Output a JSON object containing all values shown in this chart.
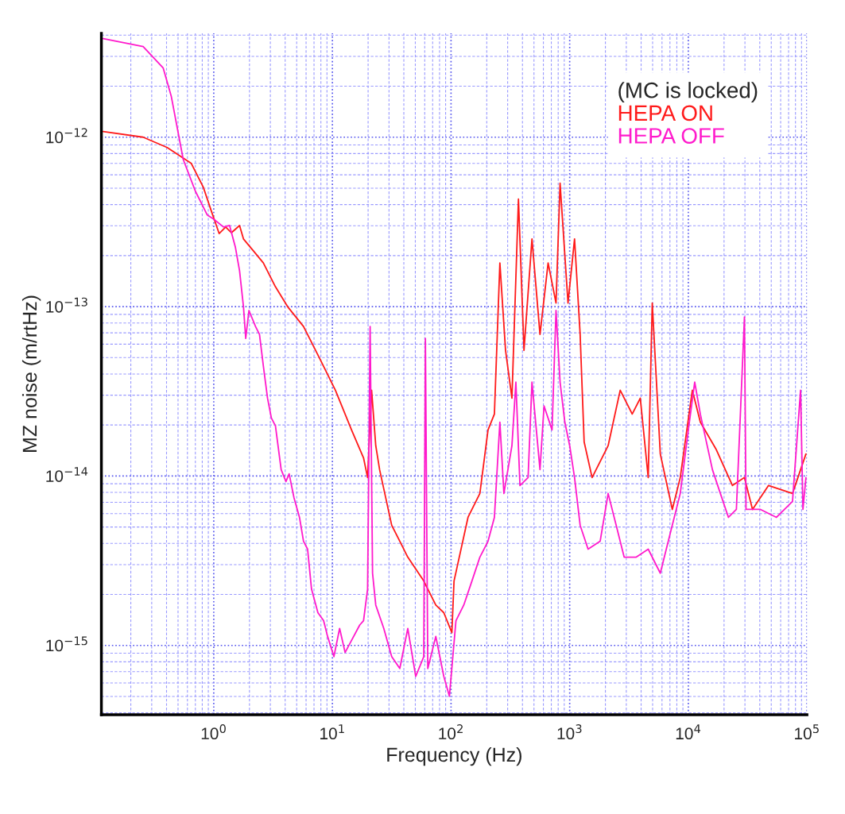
{
  "chart_data": {
    "type": "line",
    "xlabel": "Frequency (Hz)",
    "ylabel": "MZ noise (m/rtHz)",
    "legend_title": "(MC is locked)",
    "log": "xy",
    "grid": true,
    "legend": "top right",
    "marker": "none",
    "line_style": "solid",
    "xlim": [
      0.113,
      100000
    ],
    "ylim": [
      3.9e-16,
      4.1e-12
    ],
    "xticks": [
      {
        "value": 0.2,
        "label": null
      },
      {
        "value": 0.3,
        "label": null
      },
      {
        "value": 0.4,
        "label": null
      },
      {
        "value": 0.5,
        "label": null
      },
      {
        "value": 0.6,
        "label": null
      },
      {
        "value": 0.7,
        "label": null
      },
      {
        "value": 0.8,
        "label": null
      },
      {
        "value": 0.9,
        "label": null
      },
      {
        "value": 2,
        "label": null
      },
      {
        "value": 3,
        "label": null
      },
      {
        "value": 4,
        "label": null
      },
      {
        "value": 5,
        "label": null
      },
      {
        "value": 6,
        "label": null
      },
      {
        "value": 7,
        "label": null
      },
      {
        "value": 8,
        "label": null
      },
      {
        "value": 9,
        "label": null
      },
      {
        "value": 20,
        "label": null
      },
      {
        "value": 30,
        "label": null
      },
      {
        "value": 40,
        "label": null
      },
      {
        "value": 50,
        "label": null
      },
      {
        "value": 60,
        "label": null
      },
      {
        "value": 70,
        "label": null
      },
      {
        "value": 80,
        "label": null
      },
      {
        "value": 90,
        "label": null
      },
      {
        "value": 200,
        "label": null
      },
      {
        "value": 300,
        "label": null
      },
      {
        "value": 400,
        "label": null
      },
      {
        "value": 500,
        "label": null
      },
      {
        "value": 600,
        "label": null
      },
      {
        "value": 700,
        "label": null
      },
      {
        "value": 800,
        "label": null
      },
      {
        "value": 900,
        "label": null
      },
      {
        "value": 2000,
        "label": null
      },
      {
        "value": 3000,
        "label": null
      },
      {
        "value": 4000,
        "label": null
      },
      {
        "value": 5000,
        "label": null
      },
      {
        "value": 6000,
        "label": null
      },
      {
        "value": 7000,
        "label": null
      },
      {
        "value": 8000,
        "label": null
      },
      {
        "value": 9000,
        "label": null
      },
      {
        "value": 20000,
        "label": null
      },
      {
        "value": 30000,
        "label": null
      },
      {
        "value": 40000,
        "label": null
      },
      {
        "value": 50000,
        "label": null
      },
      {
        "value": 60000,
        "label": null
      },
      {
        "value": 70000,
        "label": null
      },
      {
        "value": 80000,
        "label": null
      },
      {
        "value": 90000,
        "label": null
      },
      {
        "value": 1,
        "label": "10$^{0}$"
      },
      {
        "value": 10,
        "label": "10$^{1}$"
      },
      {
        "value": 100,
        "label": "10$^{2}$"
      },
      {
        "value": 1000,
        "label": "10$^{3}$"
      },
      {
        "value": 10000,
        "label": "10$^{4}$"
      },
      {
        "value": 100000,
        "label": "10$^{5}$"
      }
    ],
    "yticks": [
      {
        "value": 4e-16,
        "label": null
      },
      {
        "value": 5e-16,
        "label": null
      },
      {
        "value": 6e-16,
        "label": null
      },
      {
        "value": 7e-16,
        "label": null
      },
      {
        "value": 8e-16,
        "label": null
      },
      {
        "value": 9e-16,
        "label": null
      },
      {
        "value": 2e-15,
        "label": null
      },
      {
        "value": 3e-15,
        "label": null
      },
      {
        "value": 4e-15,
        "label": null
      },
      {
        "value": 5e-15,
        "label": null
      },
      {
        "value": 6e-15,
        "label": null
      },
      {
        "value": 7e-15,
        "label": null
      },
      {
        "value": 8e-15,
        "label": null
      },
      {
        "value": 9e-15,
        "label": null
      },
      {
        "value": 2e-14,
        "label": null
      },
      {
        "value": 3e-14,
        "label": null
      },
      {
        "value": 4e-14,
        "label": null
      },
      {
        "value": 5e-14,
        "label": null
      },
      {
        "value": 6e-14,
        "label": null
      },
      {
        "value": 7e-14,
        "label": null
      },
      {
        "value": 8e-14,
        "label": null
      },
      {
        "value": 9e-14,
        "label": null
      },
      {
        "value": 2e-13,
        "label": null
      },
      {
        "value": 3e-13,
        "label": null
      },
      {
        "value": 4e-13,
        "label": null
      },
      {
        "value": 5e-13,
        "label": null
      },
      {
        "value": 6e-13,
        "label": null
      },
      {
        "value": 7e-13,
        "label": null
      },
      {
        "value": 8e-13,
        "label": null
      },
      {
        "value": 9e-13,
        "label": null
      },
      {
        "value": 2e-12,
        "label": null
      },
      {
        "value": 3e-12,
        "label": null
      },
      {
        "value": 4e-12,
        "label": null
      },
      {
        "value": 1e-15,
        "label": "10$^{−15}$"
      },
      {
        "value": 1e-14,
        "label": "10$^{−14}$"
      },
      {
        "value": 1e-13,
        "label": "10$^{−13}$"
      },
      {
        "value": 1e-12,
        "label": "10$^{−12}$"
      }
    ],
    "series": [
      {
        "name": "HEPA ON",
        "color": "#ff1a1a",
        "x": [
          0.117,
          0.254,
          0.405,
          0.647,
          0.817,
          0.955,
          1.11,
          1.26,
          1.41,
          1.65,
          1.78,
          2.25,
          2.62,
          3.31,
          4.19,
          5.71,
          7.8,
          10.6,
          14.5,
          18.3,
          19.8,
          21.4,
          23.2,
          25.0,
          31.6,
          43.2,
          58.9,
          74.4,
          86.9,
          101.6,
          106,
          139,
          175,
          205,
          232,
          258,
          288,
          326,
          370,
          412,
          481,
          562,
          658,
          767,
          830,
          968,
          1099,
          1225,
          1324,
          1545,
          2109,
          2666,
          3365,
          3936,
          4592,
          4966,
          5803,
          7328,
          8551,
          10810,
          12620,
          17220,
          23550,
          29720,
          34750,
          47420,
          75510,
          98000
        ],
        "values": [
          1.08e-12,
          1e-12,
          8.69e-13,
          7e-13,
          5.06e-13,
          3.66e-13,
          2.7e-13,
          2.95e-13,
          2.73e-13,
          3.01e-13,
          2.51e-13,
          2.06e-13,
          1.81e-13,
          1.31e-13,
          1e-13,
          7.63e-14,
          4.95e-14,
          3.21e-14,
          1.87e-14,
          1.28e-14,
          9.79e-15,
          3.21e-14,
          1.51e-14,
          1.09e-14,
          5.12e-15,
          3.32e-15,
          2.4e-15,
          1.73e-15,
          1.56e-15,
          1.19e-15,
          2.4e-15,
          5.7e-15,
          7.89e-15,
          1.87e-14,
          2.32e-14,
          1.81e-13,
          5.52e-14,
          2.88e-14,
          4.31e-13,
          5.52e-14,
          2.51e-13,
          6.85e-14,
          1.81e-13,
          1.05e-13,
          5.35e-13,
          1.05e-13,
          2.51e-13,
          6.85e-14,
          1.59e-14,
          9.79e-15,
          1.51e-14,
          3.21e-14,
          2.32e-14,
          2.88e-14,
          9.79e-15,
          1.05e-13,
          1.35e-14,
          6.35e-15,
          9.79e-15,
          3.21e-14,
          2.08e-14,
          1.43e-14,
          8.79e-15,
          9.79e-15,
          6.35e-15,
          8.79e-15,
          7.89e-15,
          1.35e-14
        ]
      },
      {
        "name": "HEPA OFF",
        "color": "#ff1acc",
        "x": [
          0.117,
          0.254,
          0.375,
          0.438,
          0.553,
          0.7,
          0.883,
          1.0,
          1.21,
          1.36,
          1.52,
          1.65,
          1.78,
          1.86,
          1.98,
          2.25,
          2.43,
          2.62,
          2.84,
          3.06,
          3.31,
          3.7,
          4.06,
          4.32,
          4.74,
          5.28,
          5.71,
          6.18,
          6.67,
          7.55,
          8.43,
          9.11,
          10.3,
          11.5,
          12.8,
          14.5,
          17.0,
          18.3,
          19.8,
          20.8,
          21.8,
          23.2,
          27.1,
          31.6,
          37.0,
          43.2,
          50.4,
          58.9,
          60.8,
          63.7,
          74.4,
          86.9,
          96.9,
          110,
          128,
          150,
          175,
          205,
          232,
          258,
          279,
          326,
          352,
          381,
          446,
          481,
          562,
          608,
          710,
          767,
          830,
          910,
          1000,
          1099,
          1225,
          1429,
          1806,
          2109,
          2466,
          2878,
          3639,
          4592,
          5803,
          6776,
          8551,
          10000,
          11320,
          12620,
          15960,
          18620,
          21780,
          25410,
          29720,
          30630,
          40550,
          55340,
          75510,
          88310,
          92470,
          98000
        ],
        "values": [
          3.82e-12,
          3.43e-12,
          2.56e-12,
          1.75e-12,
          7.39e-13,
          4.8e-13,
          3.47e-13,
          3.28e-13,
          2.95e-13,
          3.01e-13,
          2.25e-13,
          1.63e-13,
          1e-13,
          6.49e-14,
          9.48e-14,
          7.63e-14,
          6.85e-14,
          4.45e-14,
          2.88e-14,
          2.2e-14,
          1.98e-14,
          1.09e-14,
          9.27e-15,
          1.03e-14,
          7.47e-15,
          5.7e-15,
          4.12e-15,
          3.7e-15,
          2.15e-15,
          1.56e-15,
          1.4e-15,
          1.13e-15,
          8.59e-16,
          1.26e-15,
          9.08e-16,
          1.07e-15,
          1.32e-15,
          1.4e-15,
          2.15e-15,
          7.63e-14,
          2.67e-15,
          1.73e-15,
          1.26e-15,
          8.59e-16,
          7.31e-16,
          1.26e-15,
          6.56e-16,
          8.59e-16,
          6.49e-14,
          7.31e-16,
          1.13e-15,
          6.56e-16,
          5.01e-16,
          1.4e-15,
          1.73e-15,
          2.4e-15,
          3.32e-15,
          4.12e-15,
          5.7e-15,
          2.08e-14,
          7.89e-15,
          1.51e-14,
          3.58e-14,
          8.79e-15,
          9.79e-15,
          3.58e-14,
          1.09e-14,
          2.59e-14,
          1.87e-14,
          9.48e-14,
          3.58e-14,
          2.08e-14,
          1.51e-14,
          9.79e-15,
          5.12e-15,
          3.7e-15,
          4.12e-15,
          7.89e-15,
          5.12e-15,
          3.32e-15,
          3.32e-15,
          3.7e-15,
          2.67e-15,
          4.12e-15,
          7.89e-15,
          1.87e-14,
          3.58e-14,
          2.32e-14,
          1.09e-14,
          7.89e-15,
          5.7e-15,
          6.35e-15,
          8.69e-14,
          6.35e-15,
          6.35e-15,
          5.7e-15,
          7.08e-15,
          3.21e-14,
          6.35e-15,
          9.79e-15
        ]
      }
    ]
  }
}
